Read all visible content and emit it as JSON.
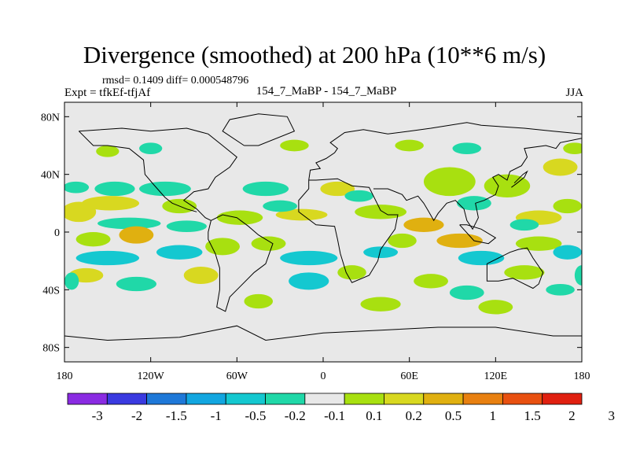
{
  "chart_data": {
    "type": "heatmap",
    "title": "Divergence (smoothed) at 200 hPa (10**6 m/s)",
    "stats_text": "rmsd= 0.1409 diff= 0.000548796",
    "left_label": "Expt = tfkEf-tfjAf",
    "center_label": "154_7_MaBP - 154_7_MaBP",
    "right_label": "JJA",
    "x_range": [
      -180,
      180
    ],
    "y_range": [
      -90,
      90
    ],
    "x_ticks": [
      {
        "value": -180,
        "label": "180"
      },
      {
        "value": -120,
        "label": "120W"
      },
      {
        "value": -60,
        "label": "60W"
      },
      {
        "value": 0,
        "label": "0"
      },
      {
        "value": 60,
        "label": "60E"
      },
      {
        "value": 120,
        "label": "120E"
      },
      {
        "value": 180,
        "label": "180"
      }
    ],
    "y_ticks": [
      {
        "value": 80,
        "label": "80N"
      },
      {
        "value": 40,
        "label": "40N"
      },
      {
        "value": 0,
        "label": "0"
      },
      {
        "value": -40,
        "label": "40S"
      },
      {
        "value": -80,
        "label": "80S"
      }
    ],
    "colorbar": {
      "colors": [
        "#8a2be2",
        "#3a3ae0",
        "#1e78d8",
        "#12a6e0",
        "#14c8d0",
        "#20d8a8",
        "#e8e8e8",
        "#a8e010",
        "#d8d820",
        "#e0b010",
        "#e88010",
        "#e85010",
        "#e02010"
      ],
      "labels": [
        "-3",
        "-2",
        "-1.5",
        "-1",
        "-0.5",
        "-0.2",
        "-0.1",
        "0.1",
        "0.2",
        "0.5",
        "1",
        "1.5",
        "2",
        "3"
      ]
    },
    "regions": [
      {
        "lon": -172,
        "lat": 31,
        "rx": 9,
        "ry": 4,
        "level": 5
      },
      {
        "lon": -145,
        "lat": 30,
        "rx": 14,
        "ry": 5,
        "level": 5
      },
      {
        "lon": -110,
        "lat": 30,
        "rx": 18,
        "ry": 5,
        "level": 5
      },
      {
        "lon": -40,
        "lat": 30,
        "rx": 16,
        "ry": 5,
        "level": 5
      },
      {
        "lon": -170,
        "lat": 14,
        "rx": 12,
        "ry": 7,
        "level": 8
      },
      {
        "lon": -148,
        "lat": 20,
        "rx": 20,
        "ry": 5,
        "level": 8
      },
      {
        "lon": -100,
        "lat": 18,
        "rx": 12,
        "ry": 5,
        "level": 7
      },
      {
        "lon": -58,
        "lat": 10,
        "rx": 16,
        "ry": 5,
        "level": 7
      },
      {
        "lon": -15,
        "lat": 12,
        "rx": 18,
        "ry": 4,
        "level": 8
      },
      {
        "lon": 10,
        "lat": 30,
        "rx": 12,
        "ry": 5,
        "level": 8
      },
      {
        "lon": 40,
        "lat": 14,
        "rx": 18,
        "ry": 5,
        "level": 7
      },
      {
        "lon": 70,
        "lat": 5,
        "rx": 14,
        "ry": 5,
        "level": 9
      },
      {
        "lon": 95,
        "lat": -6,
        "rx": 16,
        "ry": 5,
        "level": 9
      },
      {
        "lon": 150,
        "lat": 10,
        "rx": 16,
        "ry": 5,
        "level": 8
      },
      {
        "lon": 170,
        "lat": 18,
        "rx": 10,
        "ry": 5,
        "level": 7
      },
      {
        "lon": 88,
        "lat": 35,
        "rx": 18,
        "ry": 10,
        "level": 7
      },
      {
        "lon": 128,
        "lat": 32,
        "rx": 16,
        "ry": 8,
        "level": 7
      },
      {
        "lon": 165,
        "lat": 45,
        "rx": 12,
        "ry": 6,
        "level": 8
      },
      {
        "lon": -135,
        "lat": 6,
        "rx": 22,
        "ry": 4,
        "level": 5
      },
      {
        "lon": -95,
        "lat": 4,
        "rx": 14,
        "ry": 4,
        "level": 5
      },
      {
        "lon": -30,
        "lat": 18,
        "rx": 12,
        "ry": 4,
        "level": 5
      },
      {
        "lon": 25,
        "lat": 25,
        "rx": 10,
        "ry": 4,
        "level": 5
      },
      {
        "lon": 105,
        "lat": 20,
        "rx": 12,
        "ry": 5,
        "level": 5
      },
      {
        "lon": 140,
        "lat": 5,
        "rx": 10,
        "ry": 4,
        "level": 5
      },
      {
        "lon": -160,
        "lat": -5,
        "rx": 12,
        "ry": 5,
        "level": 7
      },
      {
        "lon": -130,
        "lat": -2,
        "rx": 12,
        "ry": 6,
        "level": 9
      },
      {
        "lon": -70,
        "lat": -10,
        "rx": 12,
        "ry": 6,
        "level": 7
      },
      {
        "lon": -38,
        "lat": -8,
        "rx": 12,
        "ry": 5,
        "level": 7
      },
      {
        "lon": 55,
        "lat": -6,
        "rx": 10,
        "ry": 5,
        "level": 7
      },
      {
        "lon": 150,
        "lat": -8,
        "rx": 16,
        "ry": 5,
        "level": 7
      },
      {
        "lon": -150,
        "lat": -18,
        "rx": 22,
        "ry": 5,
        "level": 4
      },
      {
        "lon": -100,
        "lat": -14,
        "rx": 16,
        "ry": 5,
        "level": 4
      },
      {
        "lon": -10,
        "lat": -18,
        "rx": 20,
        "ry": 5,
        "level": 4
      },
      {
        "lon": 40,
        "lat": -14,
        "rx": 12,
        "ry": 4,
        "level": 4
      },
      {
        "lon": 110,
        "lat": -18,
        "rx": 16,
        "ry": 5,
        "level": 4
      },
      {
        "lon": 170,
        "lat": -14,
        "rx": 10,
        "ry": 5,
        "level": 4
      },
      {
        "lon": -165,
        "lat": -30,
        "rx": 12,
        "ry": 5,
        "level": 8
      },
      {
        "lon": -85,
        "lat": -30,
        "rx": 12,
        "ry": 6,
        "level": 8
      },
      {
        "lon": 20,
        "lat": -28,
        "rx": 10,
        "ry": 5,
        "level": 7
      },
      {
        "lon": 75,
        "lat": -34,
        "rx": 12,
        "ry": 5,
        "level": 7
      },
      {
        "lon": 140,
        "lat": -28,
        "rx": 14,
        "ry": 5,
        "level": 7
      },
      {
        "lon": -130,
        "lat": -36,
        "rx": 14,
        "ry": 5,
        "level": 5
      },
      {
        "lon": -10,
        "lat": -34,
        "rx": 14,
        "ry": 6,
        "level": 4
      },
      {
        "lon": 100,
        "lat": -42,
        "rx": 12,
        "ry": 5,
        "level": 5
      },
      {
        "lon": 165,
        "lat": -40,
        "rx": 10,
        "ry": 4,
        "level": 5
      },
      {
        "lon": -45,
        "lat": -48,
        "rx": 10,
        "ry": 5,
        "level": 7
      },
      {
        "lon": 40,
        "lat": -50,
        "rx": 14,
        "ry": 5,
        "level": 7
      },
      {
        "lon": 120,
        "lat": -52,
        "rx": 12,
        "ry": 5,
        "level": 7
      },
      {
        "lon": -150,
        "lat": 56,
        "rx": 8,
        "ry": 4,
        "level": 7
      },
      {
        "lon": -20,
        "lat": 60,
        "rx": 10,
        "ry": 4,
        "level": 7
      },
      {
        "lon": 60,
        "lat": 60,
        "rx": 10,
        "ry": 4,
        "level": 7
      },
      {
        "lon": 175,
        "lat": 58,
        "rx": 8,
        "ry": 4,
        "level": 7
      },
      {
        "lon": -120,
        "lat": 58,
        "rx": 8,
        "ry": 4,
        "level": 5
      },
      {
        "lon": 100,
        "lat": 58,
        "rx": 10,
        "ry": 4,
        "level": 5
      },
      {
        "lon": -175,
        "lat": -34,
        "rx": 5,
        "ry": 6,
        "level": 5
      },
      {
        "lon": 180,
        "lat": -30,
        "rx": 5,
        "ry": 7,
        "level": 5
      }
    ]
  }
}
